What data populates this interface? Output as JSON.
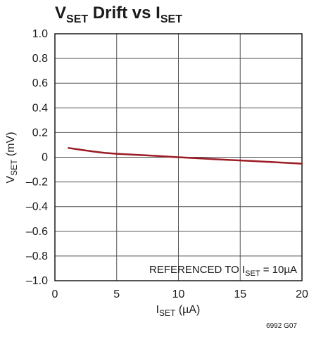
{
  "chart_data": {
    "type": "line",
    "title": {
      "main": "V",
      "sub": "SET",
      "rest": " Drift vs I",
      "sub2": "SET"
    },
    "xlabel": {
      "main": "I",
      "sub": "SET",
      "rest": " (µA)"
    },
    "ylabel": {
      "main": "V",
      "sub": "SET",
      "rest": " (mV)"
    },
    "xlim": [
      0,
      20
    ],
    "ylim": [
      -1.0,
      1.0
    ],
    "x_ticks": [
      0,
      5,
      10,
      15,
      20
    ],
    "x_tick_labels": [
      "0",
      "5",
      "10",
      "15",
      "20"
    ],
    "y_ticks": [
      1.0,
      0.8,
      0.6,
      0.4,
      0.2,
      0,
      -0.2,
      -0.4,
      -0.6,
      -0.8,
      -1.0
    ],
    "y_tick_labels": [
      "1.0",
      "0.8",
      "0.6",
      "0.4",
      "0.2",
      "0",
      "–0.2",
      "–0.4",
      "–0.6",
      "–0.8",
      "–1.0"
    ],
    "grid": true,
    "annotation": {
      "pre": "REFERENCED TO I",
      "sub": "SET",
      "post": " = 10µA"
    },
    "figure_code": "6992 G07",
    "series": [
      {
        "color": "#9b1c24",
        "x": [
          1.1,
          2,
          3,
          4,
          5,
          6,
          8,
          10,
          12,
          14,
          16,
          18,
          20
        ],
        "y": [
          0.075,
          0.062,
          0.048,
          0.036,
          0.028,
          0.023,
          0.012,
          0.0,
          -0.011,
          -0.021,
          -0.031,
          -0.041,
          -0.052
        ]
      }
    ]
  }
}
